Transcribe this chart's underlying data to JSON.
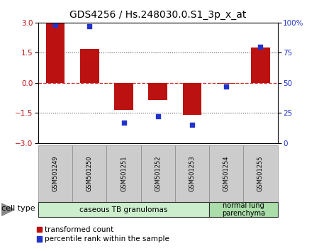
{
  "title": "GDS4256 / Hs.248030.0.S1_3p_x_at",
  "samples": [
    "GSM501249",
    "GSM501250",
    "GSM501251",
    "GSM501252",
    "GSM501253",
    "GSM501254",
    "GSM501255"
  ],
  "bar_values": [
    2.95,
    1.7,
    -1.35,
    -0.85,
    -1.6,
    -0.05,
    1.75
  ],
  "dot_values_pct": [
    98,
    97,
    17,
    22,
    15,
    47,
    80
  ],
  "ylim": [
    -3,
    3
  ],
  "y2lim": [
    0,
    100
  ],
  "yticks": [
    -3,
    -1.5,
    0,
    1.5,
    3
  ],
  "y2ticks": [
    0,
    25,
    50,
    75,
    100
  ],
  "bar_color": "#bb1111",
  "dot_color": "#2233cc",
  "zero_line_color": "#cc2222",
  "dotted_line_color": "#555555",
  "bg_color": "#ffffff",
  "plot_bg": "#ffffff",
  "group1_label": "caseous TB granulomas",
  "group2_label": "normal lung\nparenchyma",
  "group1_indices": [
    0,
    1,
    2,
    3,
    4
  ],
  "group2_indices": [
    5,
    6
  ],
  "group1_color": "#cceecc",
  "group2_color": "#aaddaa",
  "sample_box_color": "#cccccc",
  "cell_type_label": "cell type",
  "legend_bar_label": "transformed count",
  "legend_dot_label": "percentile rank within the sample",
  "tick_label_fontsize": 7.5,
  "title_fontsize": 10,
  "sample_fontsize": 6.0,
  "legend_fontsize": 7.5,
  "cell_type_fontsize": 8.0,
  "group_label_fontsize": 7.5
}
